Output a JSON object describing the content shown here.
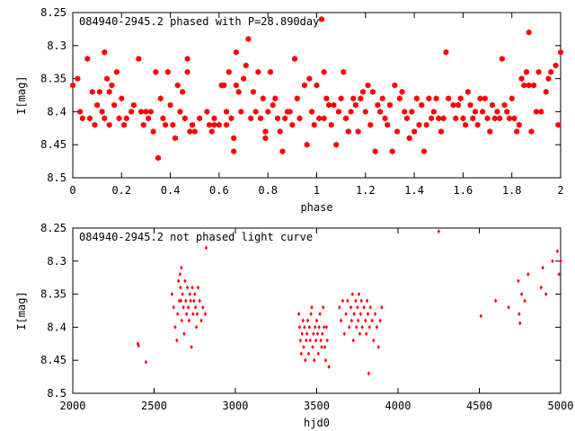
{
  "chart_data": [
    {
      "type": "scatter",
      "title": "084940-2945.2 phased with P=28.890day",
      "xlabel": "phase",
      "ylabel": "I[mag]",
      "xlim": [
        0,
        2
      ],
      "ylim": [
        8.25,
        8.5
      ],
      "y_inverted": true,
      "xticks": [
        0,
        0.2,
        0.4,
        0.6,
        0.8,
        1,
        1.2,
        1.4,
        1.6,
        1.8,
        2
      ],
      "xtick_labels": [
        "0",
        "0.2",
        "0.4",
        "0.6",
        "0.8",
        "1",
        "1.2",
        "1.4",
        "1.6",
        "1.8",
        "2"
      ],
      "yticks": [
        8.25,
        8.3,
        8.35,
        8.4,
        8.45,
        8.5
      ],
      "ytick_labels": [
        "8.25",
        "8.3",
        "8.35",
        "8.4",
        "8.45",
        "8.5"
      ],
      "grid": false,
      "legend": "none",
      "marker": "filled-hexagon",
      "color": "#ff0000",
      "points": [
        [
          0.0,
          8.36
        ],
        [
          0.02,
          8.35
        ],
        [
          0.03,
          8.4
        ],
        [
          0.04,
          8.41
        ],
        [
          0.06,
          8.32
        ],
        [
          0.07,
          8.41
        ],
        [
          0.08,
          8.37
        ],
        [
          0.09,
          8.42
        ],
        [
          0.1,
          8.39
        ],
        [
          0.11,
          8.37
        ],
        [
          0.12,
          8.4
        ],
        [
          0.13,
          8.31
        ],
        [
          0.13,
          8.41
        ],
        [
          0.14,
          8.35
        ],
        [
          0.15,
          8.37
        ],
        [
          0.15,
          8.42
        ],
        [
          0.16,
          8.36
        ],
        [
          0.17,
          8.39
        ],
        [
          0.18,
          8.34
        ],
        [
          0.19,
          8.41
        ],
        [
          0.2,
          8.38
        ],
        [
          0.21,
          8.42
        ],
        [
          0.22,
          8.41
        ],
        [
          0.24,
          8.4
        ],
        [
          0.25,
          8.39
        ],
        [
          0.27,
          8.32
        ],
        [
          0.28,
          8.4
        ],
        [
          0.29,
          8.42
        ],
        [
          0.3,
          8.4
        ],
        [
          0.31,
          8.41
        ],
        [
          0.32,
          8.4
        ],
        [
          0.33,
          8.43
        ],
        [
          0.34,
          8.34
        ],
        [
          0.35,
          8.47
        ],
        [
          0.36,
          8.38
        ],
        [
          0.37,
          8.41
        ],
        [
          0.38,
          8.42
        ],
        [
          0.39,
          8.34
        ],
        [
          0.4,
          8.39
        ],
        [
          0.41,
          8.42
        ],
        [
          0.42,
          8.44
        ],
        [
          0.43,
          8.36
        ],
        [
          0.44,
          8.4
        ],
        [
          0.45,
          8.37
        ],
        [
          0.46,
          8.41
        ],
        [
          0.47,
          8.34
        ],
        [
          0.47,
          8.32
        ],
        [
          0.48,
          8.43
        ],
        [
          0.49,
          8.42
        ],
        [
          0.5,
          8.43
        ],
        [
          0.52,
          8.41
        ],
        [
          0.55,
          8.4
        ],
        [
          0.56,
          8.42
        ],
        [
          0.57,
          8.43
        ],
        [
          0.58,
          8.42
        ],
        [
          0.58,
          8.41
        ],
        [
          0.6,
          8.42
        ],
        [
          0.61,
          8.36
        ],
        [
          0.62,
          8.36
        ],
        [
          0.63,
          8.4
        ],
        [
          0.63,
          8.42
        ],
        [
          0.64,
          8.34
        ],
        [
          0.65,
          8.41
        ],
        [
          0.66,
          8.46
        ],
        [
          0.66,
          8.44
        ],
        [
          0.67,
          8.36
        ],
        [
          0.67,
          8.31
        ],
        [
          0.68,
          8.37
        ],
        [
          0.69,
          8.4
        ],
        [
          0.7,
          8.35
        ],
        [
          0.71,
          8.33
        ],
        [
          0.72,
          8.29
        ],
        [
          0.73,
          8.41
        ],
        [
          0.74,
          8.37
        ],
        [
          0.75,
          8.4
        ],
        [
          0.76,
          8.34
        ],
        [
          0.77,
          8.41
        ],
        [
          0.78,
          8.38
        ],
        [
          0.79,
          8.43
        ],
        [
          0.79,
          8.44
        ],
        [
          0.8,
          8.4
        ],
        [
          0.81,
          8.34
        ],
        [
          0.82,
          8.39
        ],
        [
          0.83,
          8.38
        ],
        [
          0.84,
          8.41
        ],
        [
          0.85,
          8.43
        ],
        [
          0.86,
          8.46
        ],
        [
          0.87,
          8.41
        ],
        [
          0.88,
          8.4
        ],
        [
          0.89,
          8.4
        ],
        [
          0.9,
          8.42
        ],
        [
          0.91,
          8.32
        ],
        [
          0.92,
          8.38
        ],
        [
          0.93,
          8.41
        ],
        [
          0.95,
          8.36
        ],
        [
          0.96,
          8.45
        ],
        [
          0.97,
          8.35
        ],
        [
          0.98,
          8.4
        ],
        [
          0.99,
          8.42
        ],
        [
          1.0,
          8.36
        ],
        [
          1.01,
          8.41
        ],
        [
          1.02,
          8.26
        ],
        [
          1.03,
          8.34
        ],
        [
          1.03,
          8.41
        ],
        [
          1.04,
          8.38
        ],
        [
          1.05,
          8.39
        ],
        [
          1.06,
          8.42
        ],
        [
          1.07,
          8.39
        ],
        [
          1.08,
          8.45
        ],
        [
          1.09,
          8.4
        ],
        [
          1.1,
          8.38
        ],
        [
          1.11,
          8.34
        ],
        [
          1.12,
          8.41
        ],
        [
          1.13,
          8.43
        ],
        [
          1.14,
          8.4
        ],
        [
          1.15,
          8.38
        ],
        [
          1.16,
          8.39
        ],
        [
          1.17,
          8.43
        ],
        [
          1.18,
          8.38
        ],
        [
          1.19,
          8.37
        ],
        [
          1.2,
          8.4
        ],
        [
          1.21,
          8.36
        ],
        [
          1.22,
          8.42
        ],
        [
          1.23,
          8.37
        ],
        [
          1.24,
          8.46
        ],
        [
          1.25,
          8.39
        ],
        [
          1.26,
          8.4
        ],
        [
          1.27,
          8.38
        ],
        [
          1.28,
          8.41
        ],
        [
          1.29,
          8.42
        ],
        [
          1.3,
          8.39
        ],
        [
          1.31,
          8.46
        ],
        [
          1.32,
          8.36
        ],
        [
          1.33,
          8.43
        ],
        [
          1.34,
          8.38
        ],
        [
          1.35,
          8.37
        ],
        [
          1.36,
          8.4
        ],
        [
          1.37,
          8.41
        ],
        [
          1.38,
          8.44
        ],
        [
          1.39,
          8.4
        ],
        [
          1.4,
          8.43
        ],
        [
          1.41,
          8.38
        ],
        [
          1.42,
          8.42
        ],
        [
          1.43,
          8.39
        ],
        [
          1.44,
          8.46
        ],
        [
          1.45,
          8.42
        ],
        [
          1.46,
          8.38
        ],
        [
          1.47,
          8.41
        ],
        [
          1.48,
          8.4
        ],
        [
          1.49,
          8.38
        ],
        [
          1.5,
          8.41
        ],
        [
          1.51,
          8.43
        ],
        [
          1.52,
          8.41
        ],
        [
          1.53,
          8.31
        ],
        [
          1.54,
          8.38
        ],
        [
          1.56,
          8.39
        ],
        [
          1.57,
          8.41
        ],
        [
          1.58,
          8.39
        ],
        [
          1.59,
          8.38
        ],
        [
          1.6,
          8.41
        ],
        [
          1.61,
          8.42
        ],
        [
          1.62,
          8.37
        ],
        [
          1.63,
          8.39
        ],
        [
          1.64,
          8.41
        ],
        [
          1.65,
          8.4
        ],
        [
          1.66,
          8.42
        ],
        [
          1.67,
          8.38
        ],
        [
          1.68,
          8.4
        ],
        [
          1.69,
          8.38
        ],
        [
          1.7,
          8.41
        ],
        [
          1.71,
          8.43
        ],
        [
          1.72,
          8.39
        ],
        [
          1.73,
          8.41
        ],
        [
          1.74,
          8.4
        ],
        [
          1.75,
          8.41
        ],
        [
          1.76,
          8.32
        ],
        [
          1.77,
          8.39
        ],
        [
          1.78,
          8.4
        ],
        [
          1.79,
          8.41
        ],
        [
          1.8,
          8.38
        ],
        [
          1.81,
          8.41
        ],
        [
          1.82,
          8.43
        ],
        [
          1.83,
          8.42
        ],
        [
          1.84,
          8.35
        ],
        [
          1.85,
          8.36
        ],
        [
          1.86,
          8.34
        ],
        [
          1.87,
          8.28
        ],
        [
          1.87,
          8.36
        ],
        [
          1.88,
          8.43
        ],
        [
          1.89,
          8.36
        ],
        [
          1.9,
          8.4
        ],
        [
          1.91,
          8.34
        ],
        [
          1.92,
          8.4
        ],
        [
          1.94,
          8.37
        ],
        [
          1.95,
          8.35
        ],
        [
          1.96,
          8.34
        ],
        [
          1.98,
          8.33
        ],
        [
          1.99,
          8.42
        ],
        [
          2.0,
          8.31
        ]
      ]
    },
    {
      "type": "scatter",
      "title": "084940-2945.2 not phased light curve",
      "xlabel": "hjd0",
      "ylabel": "I[mag]",
      "xlim": [
        2000,
        5000
      ],
      "ylim": [
        8.25,
        8.5
      ],
      "y_inverted": true,
      "xticks": [
        2000,
        2500,
        3000,
        3500,
        4000,
        4500,
        5000
      ],
      "xtick_labels": [
        "2000",
        "2500",
        "3000",
        "3500",
        "4000",
        "4500",
        "5000"
      ],
      "yticks": [
        8.25,
        8.3,
        8.35,
        8.4,
        8.45,
        8.5
      ],
      "ytick_labels": [
        "8.25",
        "8.3",
        "8.35",
        "8.4",
        "8.45",
        "8.5"
      ],
      "grid": false,
      "legend": "none",
      "marker": "small-diamond",
      "color": "#ff0000",
      "points": [
        [
          2400,
          8.425
        ],
        [
          2405,
          8.428
        ],
        [
          2450,
          8.453
        ],
        [
          2610,
          8.35
        ],
        [
          2620,
          8.37
        ],
        [
          2630,
          8.4
        ],
        [
          2640,
          8.42
        ],
        [
          2645,
          8.38
        ],
        [
          2650,
          8.33
        ],
        [
          2655,
          8.36
        ],
        [
          2660,
          8.32
        ],
        [
          2662,
          8.34
        ],
        [
          2665,
          8.36
        ],
        [
          2668,
          8.31
        ],
        [
          2670,
          8.39
        ],
        [
          2675,
          8.35
        ],
        [
          2680,
          8.37
        ],
        [
          2685,
          8.41
        ],
        [
          2690,
          8.33
        ],
        [
          2695,
          8.36
        ],
        [
          2700,
          8.38
        ],
        [
          2705,
          8.34
        ],
        [
          2710,
          8.37
        ],
        [
          2715,
          8.39
        ],
        [
          2720,
          8.35
        ],
        [
          2725,
          8.36
        ],
        [
          2730,
          8.43
        ],
        [
          2735,
          8.34
        ],
        [
          2740,
          8.38
        ],
        [
          2745,
          8.36
        ],
        [
          2750,
          8.35
        ],
        [
          2755,
          8.37
        ],
        [
          2760,
          8.4
        ],
        [
          2765,
          8.38
        ],
        [
          2770,
          8.34
        ],
        [
          2780,
          8.36
        ],
        [
          2790,
          8.39
        ],
        [
          2800,
          8.37
        ],
        [
          2815,
          8.38
        ],
        [
          2820,
          8.28
        ],
        [
          3390,
          8.38
        ],
        [
          3395,
          8.4
        ],
        [
          3400,
          8.42
        ],
        [
          3405,
          8.44
        ],
        [
          3410,
          8.41
        ],
        [
          3415,
          8.39
        ],
        [
          3420,
          8.43
        ],
        [
          3425,
          8.4
        ],
        [
          3430,
          8.45
        ],
        [
          3435,
          8.42
        ],
        [
          3440,
          8.41
        ],
        [
          3445,
          8.39
        ],
        [
          3450,
          8.44
        ],
        [
          3455,
          8.4
        ],
        [
          3460,
          8.42
        ],
        [
          3465,
          8.38
        ],
        [
          3470,
          8.37
        ],
        [
          3475,
          8.43
        ],
        [
          3480,
          8.41
        ],
        [
          3485,
          8.45
        ],
        [
          3490,
          8.4
        ],
        [
          3495,
          8.42
        ],
        [
          3500,
          8.39
        ],
        [
          3505,
          8.41
        ],
        [
          3510,
          8.44
        ],
        [
          3515,
          8.4
        ],
        [
          3520,
          8.38
        ],
        [
          3525,
          8.42
        ],
        [
          3530,
          8.43
        ],
        [
          3535,
          8.41
        ],
        [
          3540,
          8.37
        ],
        [
          3545,
          8.4
        ],
        [
          3550,
          8.43
        ],
        [
          3555,
          8.45
        ],
        [
          3560,
          8.4
        ],
        [
          3565,
          8.42
        ],
        [
          3575,
          8.46
        ],
        [
          3640,
          8.37
        ],
        [
          3650,
          8.39
        ],
        [
          3660,
          8.36
        ],
        [
          3670,
          8.41
        ],
        [
          3680,
          8.38
        ],
        [
          3690,
          8.36
        ],
        [
          3700,
          8.4
        ],
        [
          3710,
          8.37
        ],
        [
          3715,
          8.39
        ],
        [
          3720,
          8.35
        ],
        [
          3725,
          8.42
        ],
        [
          3730,
          8.38
        ],
        [
          3740,
          8.36
        ],
        [
          3745,
          8.4
        ],
        [
          3750,
          8.37
        ],
        [
          3755,
          8.39
        ],
        [
          3760,
          8.35
        ],
        [
          3765,
          8.41
        ],
        [
          3770,
          8.38
        ],
        [
          3775,
          8.36
        ],
        [
          3780,
          8.4
        ],
        [
          3790,
          8.37
        ],
        [
          3800,
          8.39
        ],
        [
          3805,
          8.41
        ],
        [
          3810,
          8.36
        ],
        [
          3815,
          8.38
        ],
        [
          3820,
          8.47
        ],
        [
          3825,
          8.4
        ],
        [
          3830,
          8.37
        ],
        [
          3840,
          8.39
        ],
        [
          3850,
          8.42
        ],
        [
          3860,
          8.38
        ],
        [
          3870,
          8.4
        ],
        [
          3880,
          8.43
        ],
        [
          3890,
          8.39
        ],
        [
          3900,
          8.37
        ],
        [
          4250,
          8.255
        ],
        [
          4510,
          8.383
        ],
        [
          4600,
          8.36
        ],
        [
          4680,
          8.37
        ],
        [
          4740,
          8.33
        ],
        [
          4745,
          8.38
        ],
        [
          4750,
          8.394
        ],
        [
          4760,
          8.35
        ],
        [
          4780,
          8.36
        ],
        [
          4800,
          8.32
        ],
        [
          4880,
          8.34
        ],
        [
          4890,
          8.31
        ],
        [
          4910,
          8.35
        ],
        [
          4950,
          8.3
        ],
        [
          4980,
          8.285
        ],
        [
          4990,
          8.32
        ],
        [
          5000,
          8.3
        ]
      ]
    }
  ]
}
